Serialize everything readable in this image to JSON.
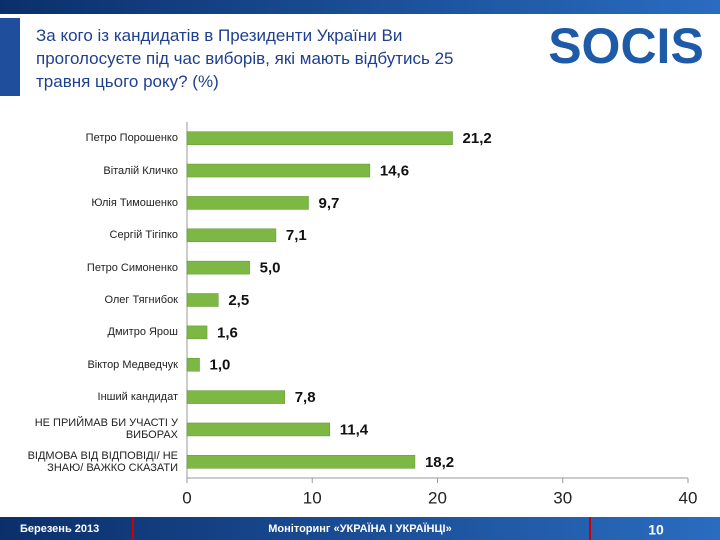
{
  "header": {
    "title": "За кого із кандидатів в Президенти України Ви проголосуєте під час виборів, які мають відбутись 25 травня цього року? (%)",
    "logo": "SOCIS"
  },
  "footer": {
    "date": "Березень 2013",
    "center": "Моніторинг «УКРАЇНА І УКРАЇНЦІ»",
    "page": "10"
  },
  "chart_data": {
    "type": "bar",
    "orientation": "horizontal",
    "categories": [
      "Петро Порошенко",
      "Віталій Кличко",
      "Юлія Тимошенко",
      "Сергій Тігіпко",
      "Петро Симоненко",
      "Олег Тягнибок",
      "Дмитро Ярош",
      "Віктор Медведчук",
      "Інший кандидат",
      "НЕ ПРИЙМАВ БИ УЧАСТІ У ВИБОРАХ",
      "ВІДМОВА ВІД ВІДПОВІДІ/ НЕ ЗНАЮ/ ВАЖКО СКАЗАТИ"
    ],
    "values": [
      21.2,
      14.6,
      9.7,
      7.1,
      5.0,
      2.5,
      1.6,
      1.0,
      7.8,
      11.4,
      18.2
    ],
    "value_labels": [
      "21,2",
      "14,6",
      "9,7",
      "7,1",
      "5,0",
      "2,5",
      "1,6",
      "1,0",
      "7,8",
      "11,4",
      "18,2"
    ],
    "color": "#7cb843",
    "xlim": [
      0,
      40
    ],
    "xticks": [
      0,
      10,
      20,
      30,
      40
    ],
    "grid": false
  }
}
